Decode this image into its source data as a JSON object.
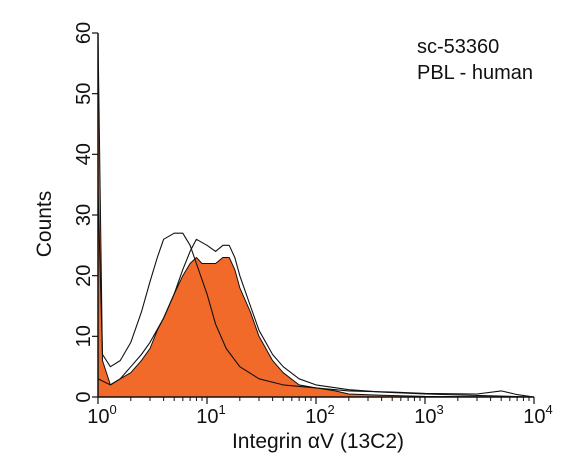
{
  "chart_data": {
    "type": "area",
    "xscale": "log",
    "xlim": [
      1,
      10000
    ],
    "ylim": [
      0,
      60
    ],
    "xlabel": "Integrin αV (13C2)",
    "ylabel": "Counts",
    "x_ticks": [
      {
        "base": "10",
        "exp": "0",
        "value": 1
      },
      {
        "base": "10",
        "exp": "1",
        "value": 10
      },
      {
        "base": "10",
        "exp": "2",
        "value": 100
      },
      {
        "base": "10",
        "exp": "3",
        "value": 1000
      },
      {
        "base": "10",
        "exp": "4",
        "value": 10000
      }
    ],
    "y_ticks": [
      "0",
      "10",
      "20",
      "30",
      "40",
      "50",
      "60"
    ],
    "annotations": [
      "sc-53360",
      "PBL - human"
    ],
    "grid": false,
    "series": [
      {
        "style": "filled",
        "fill_color": "#f26a2a",
        "points": [
          [
            1.0,
            60
          ],
          [
            1.1,
            6
          ],
          [
            1.3,
            2
          ],
          [
            1.6,
            3
          ],
          [
            2.0,
            4
          ],
          [
            2.5,
            6
          ],
          [
            3.0,
            8
          ],
          [
            3.5,
            11
          ],
          [
            4.0,
            13
          ],
          [
            5.0,
            17
          ],
          [
            6.0,
            20
          ],
          [
            7.0,
            22
          ],
          [
            8.0,
            23
          ],
          [
            9.0,
            22
          ],
          [
            10.0,
            22
          ],
          [
            12.0,
            22
          ],
          [
            14.0,
            23
          ],
          [
            16.0,
            23
          ],
          [
            18.0,
            21
          ],
          [
            20.0,
            18
          ],
          [
            25.0,
            14
          ],
          [
            30.0,
            10
          ],
          [
            40.0,
            6
          ],
          [
            50.0,
            4
          ],
          [
            70.0,
            2
          ],
          [
            100.0,
            1.5
          ],
          [
            150.0,
            1
          ],
          [
            200.0,
            0.5
          ],
          [
            400.0,
            0.3
          ],
          [
            1000.0,
            0.1
          ],
          [
            10000.0,
            0
          ]
        ]
      },
      {
        "style": "outline",
        "line_color": "#111111",
        "points": [
          [
            1.0,
            34
          ],
          [
            1.1,
            7
          ],
          [
            1.3,
            5
          ],
          [
            1.6,
            6
          ],
          [
            2.0,
            9
          ],
          [
            2.5,
            14
          ],
          [
            3.0,
            19
          ],
          [
            3.5,
            23
          ],
          [
            4.0,
            26
          ],
          [
            5.0,
            27
          ],
          [
            6.0,
            27
          ],
          [
            7.0,
            25
          ],
          [
            8.0,
            22
          ],
          [
            10.0,
            17
          ],
          [
            12.0,
            12
          ],
          [
            15.0,
            8
          ],
          [
            20.0,
            5
          ],
          [
            30.0,
            3
          ],
          [
            50.0,
            2
          ],
          [
            100.0,
            1.5
          ],
          [
            200.0,
            1
          ],
          [
            500.0,
            0.8
          ],
          [
            1000.0,
            0.6
          ],
          [
            3000.0,
            0.5
          ],
          [
            5000.0,
            1
          ],
          [
            7000.0,
            0.4
          ],
          [
            10000.0,
            0
          ]
        ]
      },
      {
        "style": "outline",
        "line_color": "#111111",
        "points": [
          [
            1.0,
            3
          ],
          [
            1.3,
            2
          ],
          [
            1.6,
            3
          ],
          [
            2.0,
            5
          ],
          [
            2.5,
            7
          ],
          [
            3.0,
            9
          ],
          [
            4.0,
            13
          ],
          [
            5.0,
            17
          ],
          [
            6.0,
            21
          ],
          [
            7.0,
            24
          ],
          [
            8.0,
            26
          ],
          [
            10.0,
            25
          ],
          [
            12.0,
            24
          ],
          [
            14.0,
            25
          ],
          [
            16.0,
            25
          ],
          [
            18.0,
            23
          ],
          [
            20.0,
            20
          ],
          [
            25.0,
            15
          ],
          [
            30.0,
            11
          ],
          [
            40.0,
            7
          ],
          [
            50.0,
            5
          ],
          [
            70.0,
            3
          ],
          [
            100.0,
            2
          ],
          [
            200.0,
            1.2
          ],
          [
            400.0,
            0.8
          ],
          [
            1000.0,
            0.5
          ],
          [
            10000.0,
            0
          ]
        ]
      }
    ]
  }
}
